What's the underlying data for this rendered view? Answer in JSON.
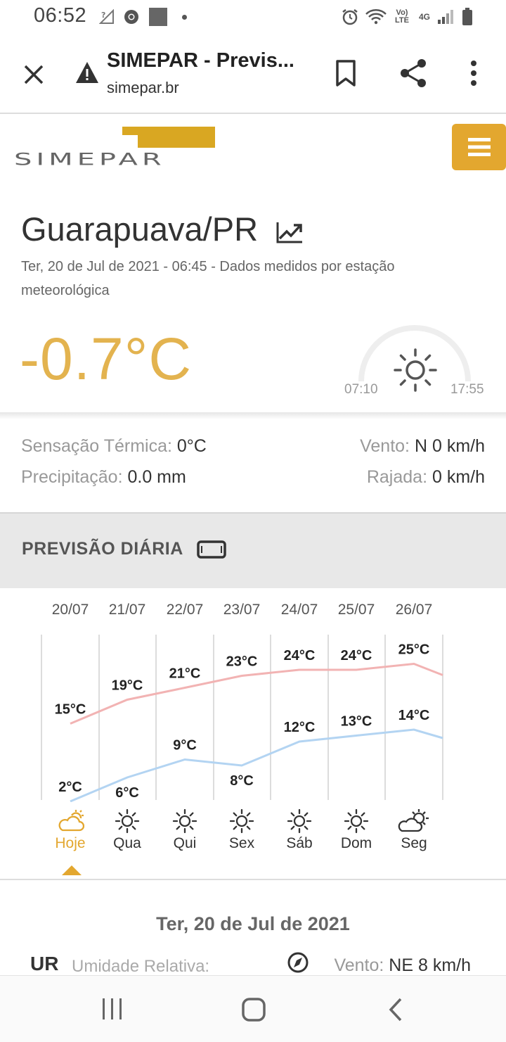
{
  "status_bar": {
    "time": "06:52",
    "lte_label": "Vo) LTE",
    "net_label": "4G"
  },
  "browser": {
    "title": "SIMEPAR - Previs...",
    "url": "simepar.br"
  },
  "site": {
    "city": "Guarapuava/PR",
    "subtitle": "Ter, 20 de Jul de 2021 - 06:45 - Dados medidos por estação meteorológica",
    "temperature": "-0.7°C",
    "sunrise": "07:10",
    "sunset": "17:55"
  },
  "stats": {
    "feels_label": "Sensação Térmica: ",
    "feels_value": "0°C",
    "wind_label": "Vento: ",
    "wind_value": "N 0 km/h",
    "precip_label": "Precipitação: ",
    "precip_value": "0.0 mm",
    "gust_label": "Rajada: ",
    "gust_value": "0 km/h"
  },
  "daily": {
    "title": "PREVISÃO DIÁRIA",
    "selected_index": 0,
    "days": [
      {
        "date": "20/07",
        "name": "Hoje",
        "max": "15°C",
        "min": "2°C",
        "icon": "partly-cloudy-icon"
      },
      {
        "date": "21/07",
        "name": "Qua",
        "max": "19°C",
        "min": "6°C",
        "icon": "sun-icon"
      },
      {
        "date": "22/07",
        "name": "Qui",
        "max": "21°C",
        "min": "9°C",
        "icon": "sun-icon"
      },
      {
        "date": "23/07",
        "name": "Sex",
        "max": "23°C",
        "min": "8°C",
        "icon": "sun-icon"
      },
      {
        "date": "24/07",
        "name": "Sáb",
        "max": "24°C",
        "min": "12°C",
        "icon": "sun-icon"
      },
      {
        "date": "25/07",
        "name": "Dom",
        "max": "24°C",
        "min": "13°C",
        "icon": "sun-icon"
      },
      {
        "date": "26/07",
        "name": "Seg",
        "max": "25°C",
        "min": "14°C",
        "icon": "partly-sunny-icon"
      }
    ]
  },
  "chart_data": {
    "type": "line",
    "categories": [
      "20/07",
      "21/07",
      "22/07",
      "23/07",
      "24/07",
      "25/07",
      "26/07"
    ],
    "series": [
      {
        "values": [
          15,
          19,
          21,
          23,
          24,
          24,
          25
        ]
      },
      {
        "values": [
          2,
          6,
          9,
          8,
          12,
          13,
          14
        ]
      }
    ],
    "colors": {
      "max": "#f2b3b3",
      "min": "#b3d4f2"
    }
  },
  "detail": {
    "date": "Ter, 20 de Jul de 2021",
    "ur_label": "UR",
    "humidity_label": "Umidade Relativa:",
    "wind_label": "Vento: ",
    "wind_value": "NE 8 km/h"
  },
  "colors": {
    "accent": "#e3a72f",
    "temp": "#e3b34f"
  }
}
